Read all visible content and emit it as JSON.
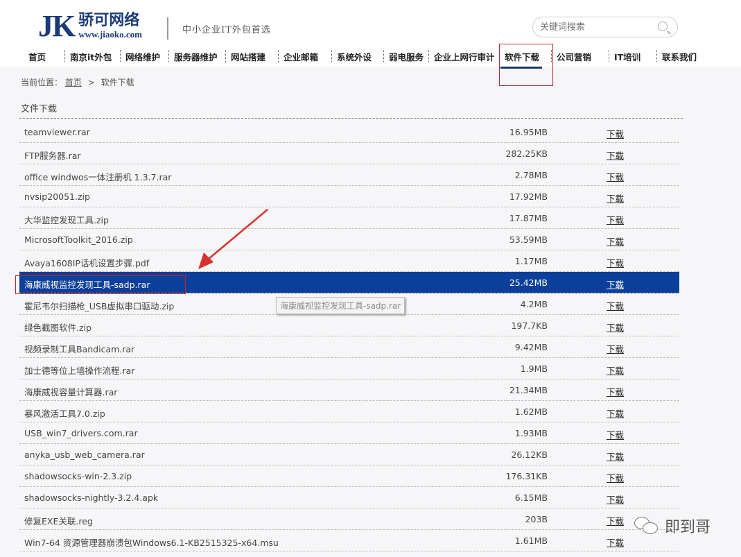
{
  "header": {
    "logo_letters": "JK",
    "logo_name": "骄可网络",
    "logo_url": "www.jiaoko.com",
    "slogan": "中小企业IT外包首选",
    "search_placeholder": "关键词搜索"
  },
  "nav": [
    "首页",
    "南京it外包",
    "网络维护",
    "服务器维护",
    "网站搭建",
    "企业邮箱",
    "系统外设",
    "弱电服务",
    "企业上网行审计",
    "软件下载",
    "公司营销",
    "IT培训",
    "联系我们"
  ],
  "nav_active": "软件下载",
  "breadcrumb": {
    "label": "当前位置：",
    "home": "首页",
    "sep": ">",
    "current": "软件下载"
  },
  "section_title": "文件下载",
  "download_label": "下载",
  "files": [
    {
      "name": "teamviewer.rar",
      "size": "16.95MB"
    },
    {
      "name": "FTP服务器.rar",
      "size": "282.25KB"
    },
    {
      "name": "office windwos一体注册机 1.3.7.rar",
      "size": "2.78MB"
    },
    {
      "name": "nvsip20051.zip",
      "size": "17.92MB"
    },
    {
      "name": "大华监控发现工具.zip",
      "size": "17.87MB"
    },
    {
      "name": "MicrosoftToolkit_2016.zip",
      "size": "53.59MB"
    },
    {
      "name": "Avaya1608IP话机设置步骤.pdf",
      "size": "1.17MB"
    },
    {
      "name": "海康威视监控发现工具-sadp.rar",
      "size": "25.42MB"
    },
    {
      "name": "霍尼韦尔扫描枪_USB虚拟串口驱动.zip",
      "size": "4.2MB"
    },
    {
      "name": "绿色截图软件.zip",
      "size": "197.7KB"
    },
    {
      "name": "视频录制工具Bandicam.rar",
      "size": "9.42MB"
    },
    {
      "name": "加士德等位上墙操作流程.rar",
      "size": "1.9MB"
    },
    {
      "name": "海康威视容量计算器.rar",
      "size": "21.34MB"
    },
    {
      "name": "暴风激活工具7.0.zip",
      "size": "1.62MB"
    },
    {
      "name": "USB_win7_drivers.com.rar",
      "size": "1.93MB"
    },
    {
      "name": "anyka_usb_web_camera.rar",
      "size": "26.12KB"
    },
    {
      "name": "shadowsocks-win-2.3.zip",
      "size": "176.31KB"
    },
    {
      "name": "shadowsocks-nightly-3.2.4.apk",
      "size": "6.15MB"
    },
    {
      "name": "修复EXE关联.reg",
      "size": "203B"
    },
    {
      "name": "Win7-64 资源管理器崩溃包Windows6.1-KB2515325-x64.msu",
      "size": "1.61MB"
    }
  ],
  "highlighted_index": 7,
  "tooltip": "海康威视监控发现工具-sadp.rar",
  "watermark": "即到哥",
  "colors": {
    "brand": "#1b3a78",
    "highlight": "#0c3f99",
    "annotation": "#c0262c"
  }
}
